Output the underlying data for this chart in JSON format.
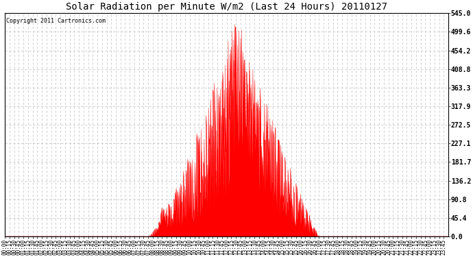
{
  "title": "Solar Radiation per Minute W/m2 (Last 24 Hours) 20110127",
  "copyright_text": "Copyright 2011 Cartronics.com",
  "bar_color": "#ff0000",
  "background_color": "#ffffff",
  "plot_bg_color": "#ffffff",
  "grid_color": "#c8c8c8",
  "dashed_line_color": "#ff0000",
  "ylim": [
    0.0,
    545.0
  ],
  "yticks": [
    0.0,
    45.4,
    90.8,
    136.2,
    181.7,
    227.1,
    272.5,
    317.9,
    363.3,
    408.8,
    454.2,
    499.6,
    545.0
  ],
  "num_minutes": 1440,
  "title_fontsize": 10,
  "copyright_fontsize": 6,
  "tick_fontsize": 5.5,
  "ytick_fontsize": 7
}
